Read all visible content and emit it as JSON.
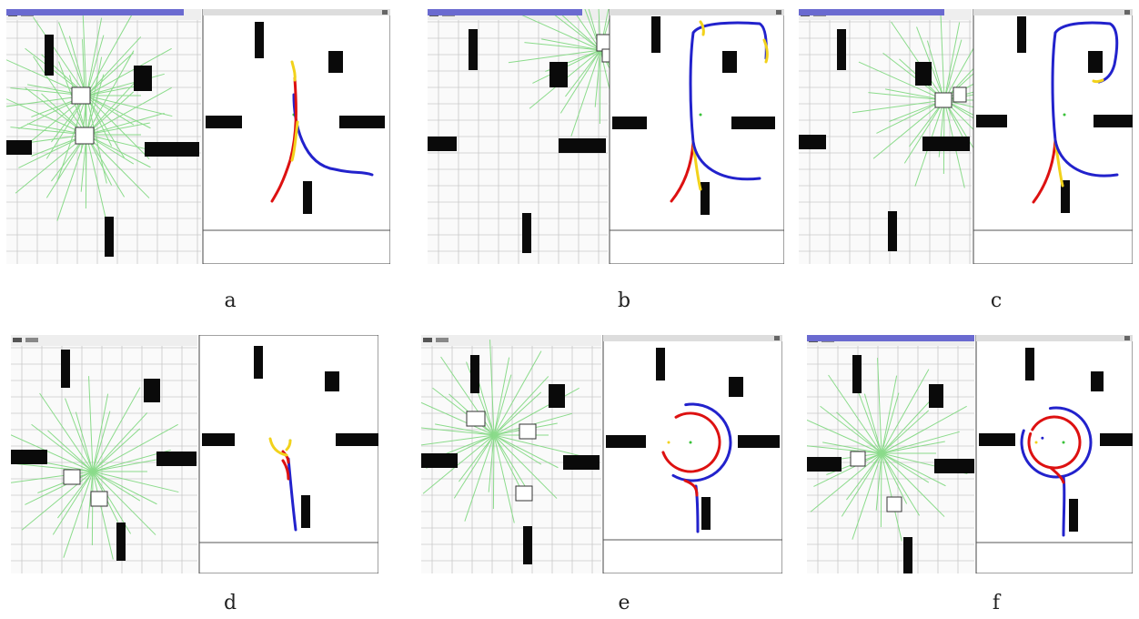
{
  "figure": {
    "panels": [
      {
        "id": "a",
        "label": "a"
      },
      {
        "id": "b",
        "label": "b"
      },
      {
        "id": "c",
        "label": "c"
      },
      {
        "id": "d",
        "label": "d"
      },
      {
        "id": "e",
        "label": "e"
      },
      {
        "id": "f",
        "label": "f"
      }
    ]
  },
  "colors": {
    "grid": "#c8c8c8",
    "ray": "#7fd87f",
    "obstacle": "#0a0a0a",
    "path_blue": "#2222cc",
    "path_red": "#dd1111",
    "path_yellow": "#f2d21b",
    "titlebar": "#6a6ad0"
  },
  "icons": [
    "window-close-icon",
    "window-minimize-icon",
    "window-maximize-icon"
  ]
}
